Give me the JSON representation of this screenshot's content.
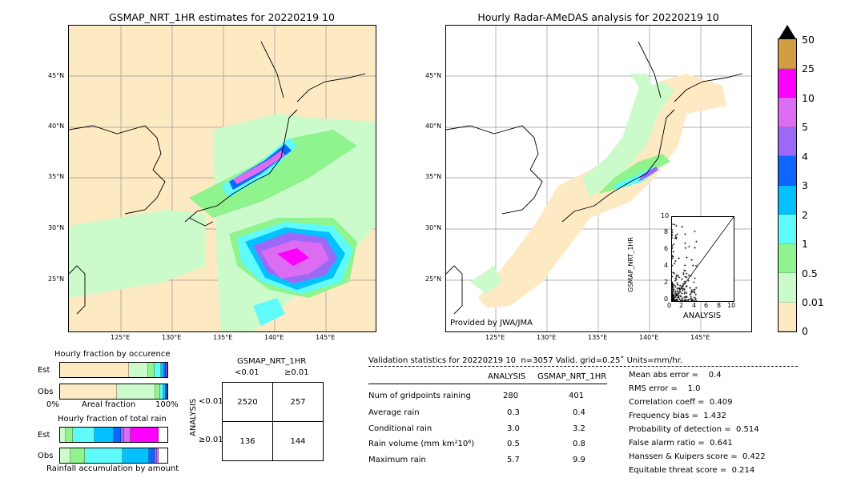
{
  "left_map": {
    "title": "GSMAP_NRT_1HR estimates for 20220219 10",
    "lat_labels": [
      "45°N",
      "40°N",
      "35°N",
      "30°N",
      "25°N"
    ],
    "lon_labels": [
      "125°E",
      "130°E",
      "135°E",
      "140°E",
      "145°E"
    ]
  },
  "right_map": {
    "title": "Hourly Radar-AMeDAS analysis for 20220219 10",
    "lat_labels": [
      "45°N",
      "40°N",
      "35°N",
      "30°N",
      "25°N"
    ],
    "lon_labels": [
      "125°E",
      "130°E",
      "135°E",
      "140°E",
      "145°E"
    ],
    "credit": "Provided by JWA/JMA"
  },
  "scatter": {
    "ylabel": "GSMAP_NRT_1HR",
    "xlabel": "ANALYSIS",
    "ticks": [
      "0",
      "2",
      "4",
      "6",
      "8",
      "10"
    ]
  },
  "colorbar": {
    "labels": [
      "50",
      "25",
      "10",
      "5",
      "4",
      "3",
      "2",
      "1",
      "0.5",
      "0.01",
      "0"
    ],
    "colors": [
      "#d39e43",
      "#ff00ff",
      "#dc6cf2",
      "#9c69f7",
      "#0c66ff",
      "#05c0ff",
      "#5ffbfa",
      "#8ff48d",
      "#cbfbcb",
      "#fde9c2"
    ]
  },
  "occurrence": {
    "title": "Hourly fraction by occurence",
    "est_label": "Est",
    "obs_label": "Obs",
    "axis_left": "0%",
    "axis_mid": "Areal fraction",
    "axis_right": "100%"
  },
  "total_rain": {
    "title": "Hourly fraction of total rain",
    "est_label": "Est",
    "obs_label": "Obs",
    "footer": "Rainfall accumulation by amount"
  },
  "contingency": {
    "col_title": "GSMAP_NRT_1HR",
    "col_lt": "<0.01",
    "col_ge": "≥0.01",
    "row_title": "ANALYSIS",
    "row_lt": "<0.01",
    "row_ge": "≥0.01",
    "cells": [
      "2520",
      "257",
      "136",
      "144"
    ]
  },
  "validation": {
    "header": "Validation statistics for 20220219 10  n=3057 Valid. grid=0.25˚ Units=mm/hr.",
    "col_analysis": "ANALYSIS",
    "col_gsmap": "GSMAP_NRT_1HR",
    "rows": [
      {
        "label": "Num of gridpoints raining",
        "a": "280",
        "g": "401"
      },
      {
        "label": "Average rain",
        "a": "0.3",
        "g": "0.4"
      },
      {
        "label": "Conditional rain",
        "a": "3.0",
        "g": "3.2"
      },
      {
        "label": "Rain volume (mm km²10⁶)",
        "a": "0.5",
        "g": "0.8"
      },
      {
        "label": "Maximum rain",
        "a": "5.7",
        "g": "9.9"
      }
    ],
    "scores": [
      "Mean abs error =    0.4",
      "RMS error =    1.0",
      "Correlation coeff =  0.409",
      "Frequency bias =  1.432",
      "Probability of detection =  0.514",
      "False alarm ratio =  0.641",
      "Hanssen & Kuipers score =  0.422",
      "Equitable threat score =  0.214"
    ]
  },
  "chart_data": [
    {
      "type": "table",
      "title": "Contingency table",
      "columns": [
        "<0.01",
        "≥0.01"
      ],
      "rows": [
        {
          "name": "<0.01",
          "values": [
            2520,
            257
          ]
        },
        {
          "name": "≥0.01",
          "values": [
            136,
            144
          ]
        }
      ]
    },
    {
      "type": "bar",
      "title": "Hourly fraction by occurence",
      "categories": [
        "Est",
        "Obs"
      ],
      "series": [
        {
          "name": "0",
          "values": [
            0.64,
            0.53
          ]
        },
        {
          "name": "0.01",
          "values": [
            0.18,
            0.36
          ]
        },
        {
          "name": "0.5",
          "values": [
            0.06,
            0.05
          ]
        },
        {
          "name": "1",
          "values": [
            0.06,
            0.03
          ]
        },
        {
          "name": "2",
          "values": [
            0.03,
            0.02
          ]
        },
        {
          "name": "3",
          "values": [
            0.015,
            0.008
          ]
        },
        {
          "name": "4",
          "values": [
            0.01,
            0.002
          ]
        },
        {
          "name": "5",
          "values": [
            0.005,
            0.0
          ]
        }
      ]
    },
    {
      "type": "bar",
      "title": "Hourly fraction of total rain",
      "categories": [
        "Est",
        "Obs"
      ],
      "series": [
        {
          "name": "0.01",
          "values": [
            0.05,
            0.1
          ]
        },
        {
          "name": "0.5",
          "values": [
            0.07,
            0.13
          ]
        },
        {
          "name": "1",
          "values": [
            0.2,
            0.35
          ]
        },
        {
          "name": "2",
          "values": [
            0.18,
            0.25
          ]
        },
        {
          "name": "3",
          "values": [
            0.07,
            0.05
          ]
        },
        {
          "name": "4",
          "values": [
            0.03,
            0.02
          ]
        },
        {
          "name": "5",
          "values": [
            0.06,
            0.02
          ]
        },
        {
          "name": "10",
          "values": [
            0.26,
            0.0
          ]
        }
      ]
    }
  ]
}
